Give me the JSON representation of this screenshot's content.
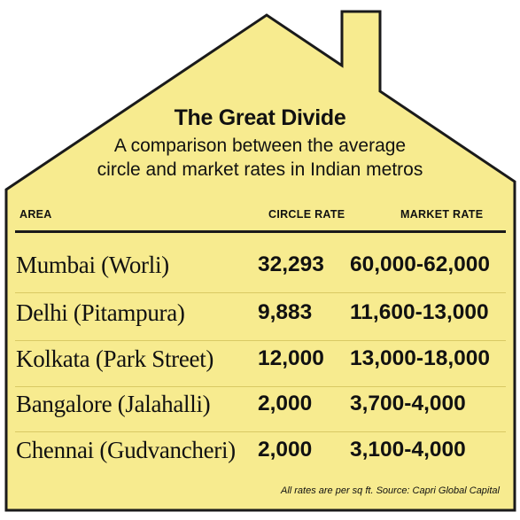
{
  "colors": {
    "house_fill": "#f7eb8f",
    "house_stroke": "#1a1a1a",
    "text": "#111111"
  },
  "title": "The Great Divide",
  "subtitle_line1": "A comparison between the average",
  "subtitle_line2": "circle and market rates in Indian metros",
  "table": {
    "headers": {
      "area": "AREA",
      "circle_rate": "CIRCLE RATE",
      "market_rate": "MARKET RATE"
    },
    "rows": [
      {
        "area": "Mumbai (Worli)",
        "circle_rate": "32,293",
        "market_rate": "60,000-62,000"
      },
      {
        "area": "Delhi (Pitampura)",
        "circle_rate": "9,883",
        "market_rate": "11,600-13,000"
      },
      {
        "area": "Kolkata (Park Street)",
        "circle_rate": "12,000",
        "market_rate": "13,000-18,000"
      },
      {
        "area": "Bangalore (Jalahalli)",
        "circle_rate": "2,000",
        "market_rate": "3,700-4,000"
      },
      {
        "area": "Chennai (Gudvancheri)",
        "circle_rate": "2,000",
        "market_rate": "3,100-4,000"
      }
    ]
  },
  "footnote": "All rates are per sq ft. Source: Capri Global Capital"
}
